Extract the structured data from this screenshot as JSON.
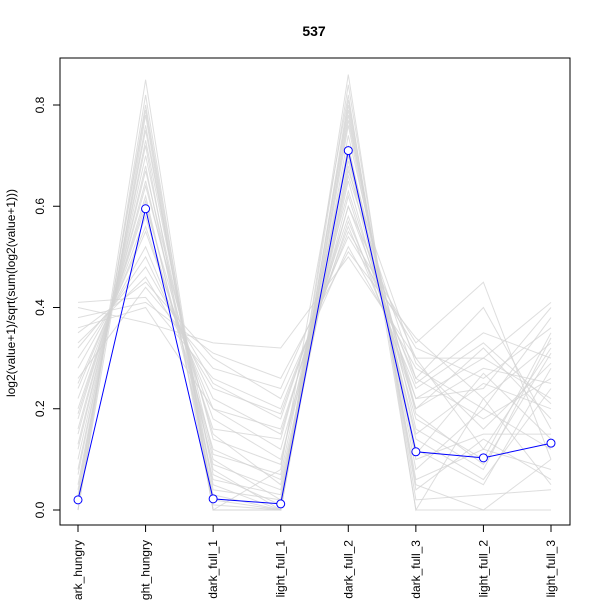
{
  "chart_data": {
    "type": "line",
    "title": "537",
    "xlabel": "",
    "ylabel": "log2(value+1)/sqrt(sum(log2(value+1)))",
    "categories": [
      "dark_hungry",
      "light_hungry",
      "dark_full_1",
      "light_full_1",
      "dark_full_2",
      "dark_full_3",
      "light_full_2",
      "light_full_3"
    ],
    "ylim": [
      0,
      0.8
    ],
    "yticks": [
      0.0,
      0.2,
      0.4,
      0.6,
      0.8
    ],
    "ytick_labels": [
      "0.0",
      "0.2",
      "0.4",
      "0.6",
      "0.8"
    ],
    "grid": false,
    "legend": "none",
    "highlight_series": {
      "values": [
        0.02,
        0.595,
        0.022,
        0.012,
        0.71,
        0.115,
        0.103,
        0.132
      ],
      "color": "#0000ff",
      "marker": "open-circle"
    },
    "background_series_color": "#d3d3d3",
    "background_series": [
      {
        "values": [
          0.0,
          0.85,
          0.0,
          0.0,
          0.86,
          0.0,
          0.0,
          0.0
        ]
      },
      {
        "values": [
          0.4,
          0.37,
          0.33,
          0.32,
          0.5,
          0.3,
          0.3,
          0.41
        ]
      },
      {
        "values": [
          0.41,
          0.42,
          0.26,
          0.2,
          0.55,
          0.33,
          0.45,
          0.1
        ]
      },
      {
        "values": [
          0.35,
          0.45,
          0.3,
          0.22,
          0.52,
          0.28,
          0.2,
          0.38
        ]
      },
      {
        "values": [
          0.3,
          0.5,
          0.22,
          0.15,
          0.6,
          0.25,
          0.35,
          0.3
        ]
      },
      {
        "values": [
          0.25,
          0.55,
          0.18,
          0.1,
          0.62,
          0.2,
          0.28,
          0.25
        ]
      },
      {
        "values": [
          0.2,
          0.6,
          0.15,
          0.05,
          0.65,
          0.18,
          0.1,
          0.35
        ]
      },
      {
        "values": [
          0.15,
          0.65,
          0.1,
          0.02,
          0.68,
          0.15,
          0.25,
          0.2
        ]
      },
      {
        "values": [
          0.1,
          0.7,
          0.08,
          0.0,
          0.72,
          0.12,
          0.05,
          0.28
        ]
      },
      {
        "values": [
          0.05,
          0.75,
          0.05,
          0.0,
          0.76,
          0.1,
          0.15,
          0.15
        ]
      },
      {
        "values": [
          0.02,
          0.8,
          0.02,
          0.0,
          0.8,
          0.05,
          0.0,
          0.1
        ]
      },
      {
        "values": [
          0.0,
          0.78,
          0.0,
          0.08,
          0.82,
          0.0,
          0.22,
          0.05
        ]
      },
      {
        "values": [
          0.32,
          0.48,
          0.25,
          0.18,
          0.58,
          0.22,
          0.3,
          0.22
        ]
      },
      {
        "values": [
          0.28,
          0.52,
          0.2,
          0.12,
          0.6,
          0.3,
          0.12,
          0.32
        ]
      },
      {
        "values": [
          0.22,
          0.58,
          0.12,
          0.06,
          0.66,
          0.26,
          0.18,
          0.26
        ]
      },
      {
        "values": [
          0.18,
          0.62,
          0.06,
          0.03,
          0.69,
          0.2,
          0.32,
          0.18
        ]
      },
      {
        "values": [
          0.12,
          0.68,
          0.03,
          0.0,
          0.74,
          0.16,
          0.08,
          0.34
        ]
      },
      {
        "values": [
          0.08,
          0.72,
          0.0,
          0.0,
          0.78,
          0.08,
          0.2,
          0.12
        ]
      },
      {
        "values": [
          0.26,
          0.44,
          0.28,
          0.24,
          0.54,
          0.32,
          0.26,
          0.36
        ]
      },
      {
        "values": [
          0.36,
          0.4,
          0.2,
          0.16,
          0.57,
          0.26,
          0.4,
          0.16
        ]
      },
      {
        "values": [
          0.16,
          0.64,
          0.14,
          0.09,
          0.7,
          0.14,
          0.06,
          0.24
        ]
      },
      {
        "values": [
          0.04,
          0.76,
          0.04,
          0.02,
          0.79,
          0.06,
          0.12,
          0.08
        ]
      },
      {
        "values": [
          0.0,
          0.82,
          0.0,
          0.0,
          0.84,
          0.02,
          0.03,
          0.04
        ]
      },
      {
        "values": [
          0.24,
          0.56,
          0.16,
          0.14,
          0.63,
          0.22,
          0.24,
          0.4
        ]
      },
      {
        "values": [
          0.19,
          0.61,
          0.09,
          0.04,
          0.67,
          0.29,
          0.16,
          0.29
        ]
      },
      {
        "values": [
          0.33,
          0.46,
          0.24,
          0.19,
          0.56,
          0.24,
          0.33,
          0.21
        ]
      },
      {
        "values": [
          0.07,
          0.73,
          0.07,
          0.01,
          0.77,
          0.11,
          0.27,
          0.14
        ]
      },
      {
        "values": [
          0.13,
          0.67,
          0.11,
          0.07,
          0.71,
          0.19,
          0.09,
          0.31
        ]
      },
      {
        "values": [
          0.38,
          0.41,
          0.31,
          0.26,
          0.51,
          0.34,
          0.22,
          0.33
        ]
      },
      {
        "values": [
          0.03,
          0.79,
          0.01,
          0.0,
          0.81,
          0.04,
          0.14,
          0.06
        ]
      }
    ]
  }
}
